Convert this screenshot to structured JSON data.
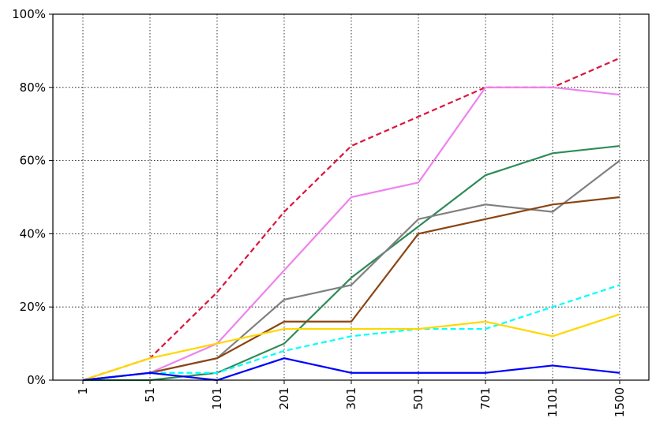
{
  "chart_data": {
    "type": "line",
    "categories": [
      "1",
      "51",
      "101",
      "201",
      "301",
      "501",
      "701",
      "1101",
      "1500"
    ],
    "ylim": [
      0,
      100
    ],
    "yticks": [
      {
        "value": 0,
        "label": "0%"
      },
      {
        "value": 20,
        "label": "20%"
      },
      {
        "value": 40,
        "label": "40%"
      },
      {
        "value": 60,
        "label": "60%"
      },
      {
        "value": 80,
        "label": "80%"
      },
      {
        "value": 100,
        "label": "100%"
      }
    ],
    "grid": true,
    "series": [
      {
        "color": "#dc143c",
        "dashed": true,
        "values": [
          0,
          6,
          24,
          46,
          64,
          72,
          80,
          80,
          88
        ]
      },
      {
        "color": "#ee82ee",
        "dashed": false,
        "values": [
          0,
          2,
          10,
          30,
          50,
          54,
          80,
          80,
          78
        ]
      },
      {
        "color": "#2e8b57",
        "dashed": false,
        "values": [
          0,
          0,
          2,
          10,
          28,
          42,
          56,
          62,
          64
        ]
      },
      {
        "color": "#808080",
        "dashed": false,
        "values": [
          0,
          2,
          6,
          22,
          26,
          44,
          48,
          46,
          60
        ]
      },
      {
        "color": "#8b4513",
        "dashed": false,
        "values": [
          0,
          2,
          6,
          16,
          16,
          40,
          44,
          48,
          50
        ]
      },
      {
        "color": "#00ffff",
        "dashed": true,
        "values": [
          0,
          2,
          2,
          8,
          12,
          14,
          14,
          20,
          26
        ]
      },
      {
        "color": "#ffd700",
        "dashed": false,
        "values": [
          0,
          6,
          10,
          14,
          14,
          14,
          16,
          12,
          18
        ]
      },
      {
        "color": "#0000ff",
        "dashed": false,
        "values": [
          0,
          2,
          0,
          6,
          2,
          2,
          2,
          4,
          2
        ]
      }
    ]
  }
}
